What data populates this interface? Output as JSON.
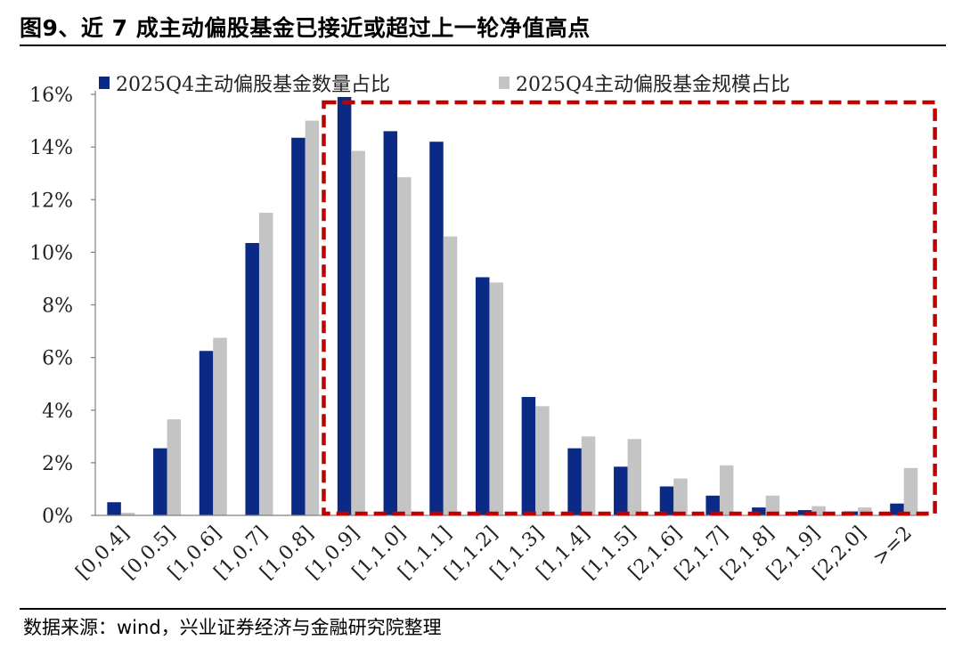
{
  "title": "图9、近 7 成主动偏股基金已接近或超过上一轮净值高点",
  "source": "数据来源：wind，兴业证券经济与金融研究院整理",
  "colors": {
    "series1": "#0b2a86",
    "series2": "#c4c4c4",
    "highlight": "#c00000"
  },
  "chart_data": {
    "type": "bar",
    "categories": [
      "[0,0.4]",
      "[0,0.5]",
      "[1,0.6]",
      "[1,0.7]",
      "[1,0.8]",
      "[1,0.9]",
      "[1,1.0]",
      "[1,1.1]",
      "[1,1.2]",
      "[1,1.3]",
      "[1,1.4]",
      "[1,1.5]",
      "[2,1.6]",
      "[2,1.7]",
      "[2,1.8]",
      "[2,1.9]",
      "[2,2.0]",
      ">=2"
    ],
    "series": [
      {
        "name": "2025Q4主动偏股基金数量占比",
        "values": [
          0.5,
          2.55,
          6.25,
          10.35,
          14.35,
          15.9,
          14.6,
          14.2,
          9.05,
          4.5,
          2.55,
          1.85,
          1.1,
          0.75,
          0.3,
          0.2,
          0.15,
          0.45
        ]
      },
      {
        "name": "2025Q4主动偏股基金规模占比",
        "values": [
          0.1,
          3.65,
          6.75,
          11.5,
          15.0,
          13.85,
          12.85,
          10.6,
          8.85,
          4.15,
          3.0,
          2.9,
          1.4,
          1.9,
          0.75,
          0.35,
          0.3,
          1.8
        ]
      }
    ],
    "yticks": [
      "0%",
      "2%",
      "4%",
      "6%",
      "8%",
      "10%",
      "12%",
      "14%",
      "16%"
    ],
    "ylim": [
      0,
      16
    ],
    "legend_position": "top",
    "grid": false,
    "highlight_box": {
      "from_category": "[1,0.9]",
      "to_category": ">=2",
      "style": "dashed"
    }
  }
}
